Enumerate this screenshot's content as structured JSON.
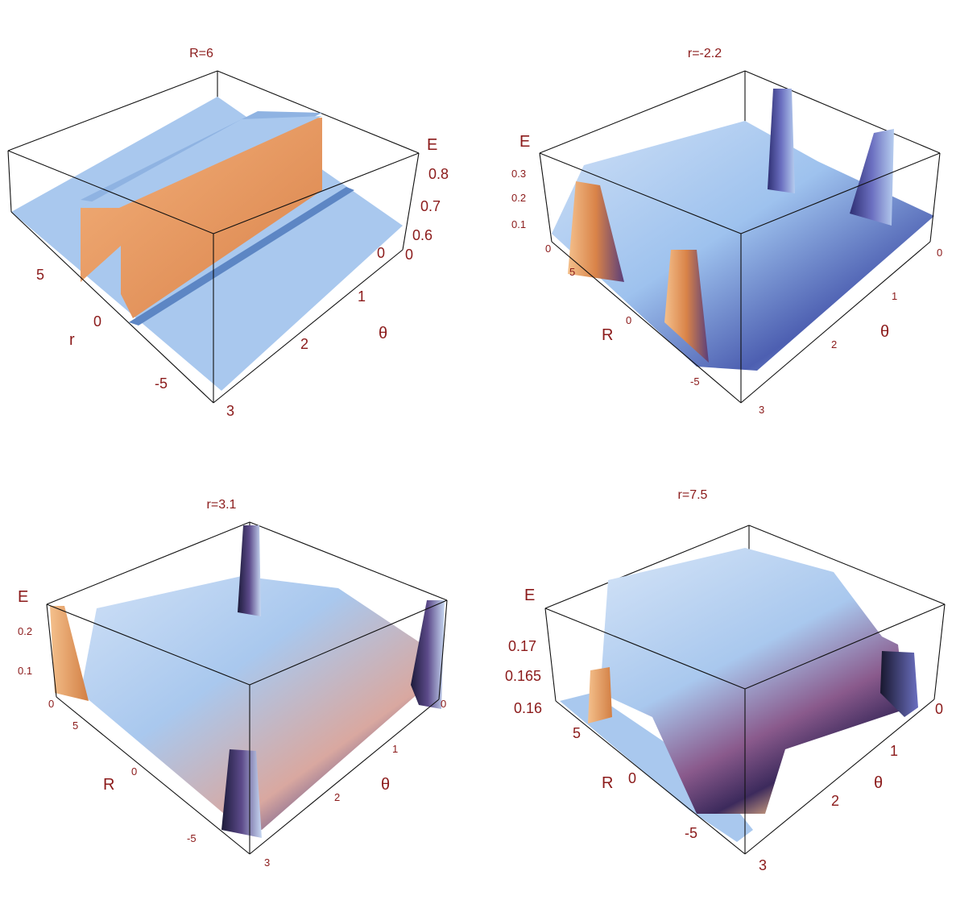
{
  "chart_data": [
    {
      "type": "surface3d",
      "title": "R=6",
      "axes": {
        "vertical": {
          "label": "E",
          "ticks": [
            "0.8",
            "0.7",
            "0.6",
            "0"
          ]
        },
        "left": {
          "label": "r",
          "ticks": [
            "5",
            "0",
            "-5"
          ]
        },
        "right": {
          "label": "θ",
          "ticks": [
            "0",
            "1",
            "2",
            "3"
          ]
        }
      },
      "colors": {
        "low": "#9ec2ee",
        "high": "#e9955b"
      }
    },
    {
      "type": "surface3d",
      "title": "r=-2.2",
      "axes": {
        "vertical": {
          "label": "E",
          "ticks": [
            "0.3",
            "0.2",
            "0.1",
            "0"
          ]
        },
        "left": {
          "label": "R",
          "ticks": [
            "5",
            "0",
            "-5"
          ]
        },
        "right": {
          "label": "θ",
          "ticks": [
            "0",
            "1",
            "2",
            "3"
          ]
        }
      },
      "colors": {
        "low": "#9ec2ee",
        "mid": "#3a3f8f",
        "high": "#efa35f"
      }
    },
    {
      "type": "surface3d",
      "title": "r=3.1",
      "axes": {
        "vertical": {
          "label": "E",
          "ticks": [
            "0.2",
            "0.1",
            "0"
          ]
        },
        "left": {
          "label": "R",
          "ticks": [
            "5",
            "0",
            "-5"
          ]
        },
        "right": {
          "label": "θ",
          "ticks": [
            "0",
            "1",
            "2",
            "3"
          ]
        }
      },
      "colors": {
        "low": "#9ec2ee",
        "mid": "#3a3f8f",
        "high": "#efa35f"
      }
    },
    {
      "type": "surface3d",
      "title": "r=7.5",
      "axes": {
        "vertical": {
          "label": "E",
          "ticks": [
            "0.17",
            "0.165",
            "0.16"
          ]
        },
        "left": {
          "label": "R",
          "ticks": [
            "5",
            "0",
            "-5"
          ]
        },
        "right": {
          "label": "θ",
          "ticks": [
            "0",
            "1",
            "2",
            "3"
          ]
        }
      },
      "colors": {
        "low": "#9ec2ee",
        "mid": "#3a3f8f",
        "high": "#efa35f"
      }
    }
  ]
}
